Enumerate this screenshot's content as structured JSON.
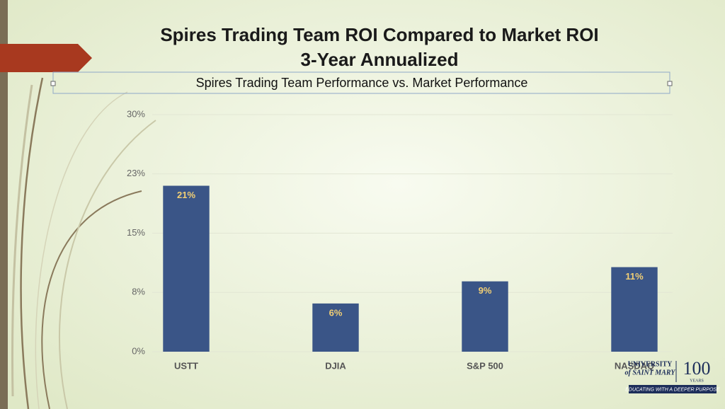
{
  "slide": {
    "title": [
      "Spires Trading Team ROI Compared to Market ROI",
      "3-Year Annualized"
    ],
    "logo": {
      "name": [
        "UNIVERSITY",
        "of SAINT MARY"
      ],
      "years": [
        "100",
        "YEARS"
      ],
      "tagline": "EDUCATING WITH A DEEPER PURPOSE"
    }
  },
  "chart_data": {
    "type": "bar",
    "title": "Spires Trading Team Performance vs. Market Performance",
    "categories": [
      "USTT",
      "DJIA",
      "S&P 500",
      "NASDAQ"
    ],
    "values": [
      21.0,
      6.1,
      8.9,
      10.7
    ],
    "value_labels": [
      "21%",
      "6%",
      "9%",
      "11%"
    ],
    "color": "#3a5587",
    "ylim": [
      0,
      30
    ],
    "yticks": [
      {
        "value": 0,
        "label": "0%"
      },
      {
        "value": 7.5,
        "label": "8%"
      },
      {
        "value": 15,
        "label": "15%"
      },
      {
        "value": 22.5,
        "label": "23%"
      },
      {
        "value": 30,
        "label": "30%"
      }
    ],
    "grid": true
  }
}
